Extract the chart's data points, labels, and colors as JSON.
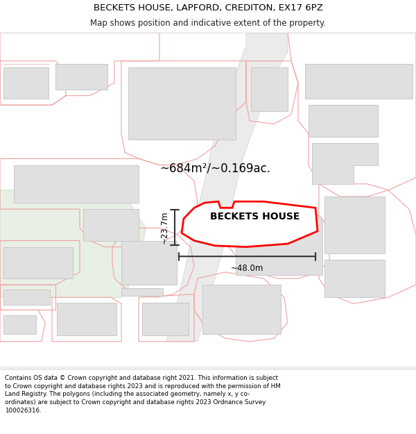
{
  "title_line1": "BECKETS HOUSE, LAPFORD, CREDITON, EX17 6PZ",
  "title_line2": "Map shows position and indicative extent of the property.",
  "area_label": "~684m²/~0.169ac.",
  "property_label": "BECKETS HOUSE",
  "dim_width": "~48.0m",
  "dim_height": "~23.7m",
  "copyright_text": "Contains OS data © Crown copyright and database right 2021. This information is subject to Crown copyright and database rights 2023 and is reproduced with the permission of HM Land Registry. The polygons (including the associated geometry, namely x, y co-ordinates) are subject to Crown copyright and database rights 2023 Ordnance Survey 100026316.",
  "bg_color": "#ffffff",
  "border_color": "#f0a0a0",
  "building_color": "#e0e0e0",
  "building_edge": "#c8c8c8",
  "main_plot_color": "#ff0000",
  "dim_line_color": "#333333",
  "green_color": "#e8f0e8",
  "road_color": "#e8e8e8"
}
